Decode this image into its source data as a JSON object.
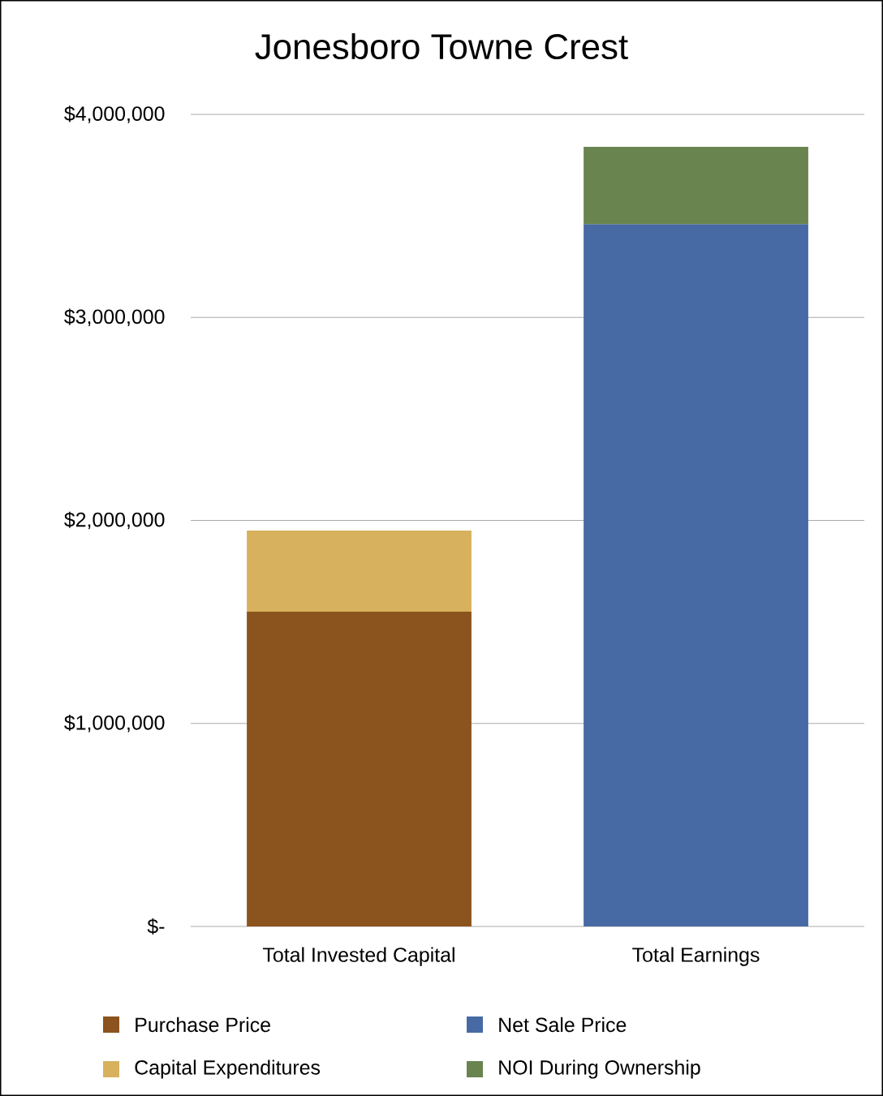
{
  "chart_data": {
    "type": "bar",
    "title": "Jonesboro Towne Crest",
    "categories": [
      "Total Invested Capital",
      "Total Earnings"
    ],
    "stacked": true,
    "series": [
      {
        "name": "Purchase Price",
        "color": "#8b531d",
        "values": [
          1550000,
          null
        ]
      },
      {
        "name": "Capital Expenditures",
        "color": "#d7b15d",
        "values": [
          400000,
          null
        ]
      },
      {
        "name": "Net Sale Price",
        "color": "#476aa5",
        "values": [
          null,
          3460000
        ]
      },
      {
        "name": "NOI During Ownership",
        "color": "#6a844f",
        "values": [
          null,
          380000
        ]
      }
    ],
    "ylim": [
      0,
      4000000
    ],
    "yticks": [
      {
        "value": 0,
        "label": "$-"
      },
      {
        "value": 1000000,
        "label": "$1,000,000"
      },
      {
        "value": 2000000,
        "label": "$2,000,000"
      },
      {
        "value": 3000000,
        "label": "$3,000,000"
      },
      {
        "value": 4000000,
        "label": "$4,000,000"
      }
    ],
    "grid": "y",
    "legend": "bottom"
  }
}
